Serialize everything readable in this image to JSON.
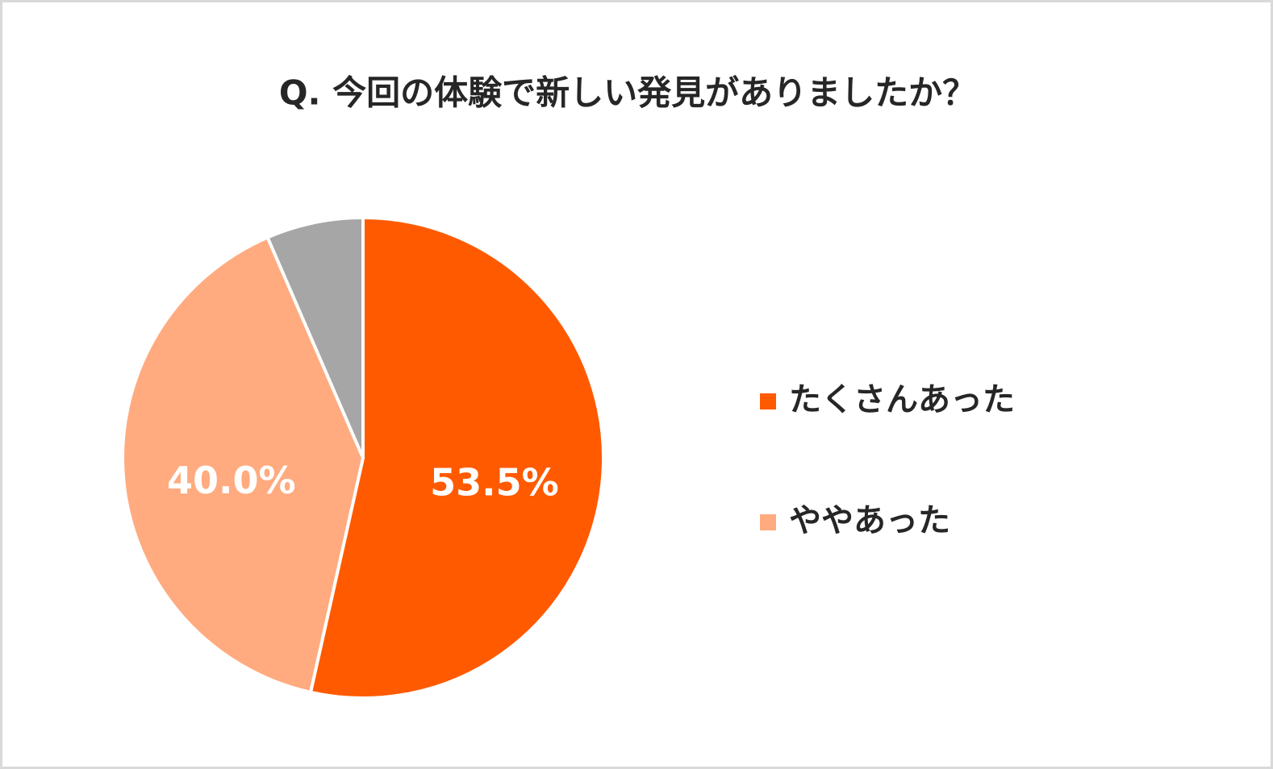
{
  "chart_data": {
    "type": "pie",
    "title": "Q. 今回の体験で新しい発見がありましたか？",
    "categories": [
      "たくさんあった",
      "ややあった",
      null
    ],
    "values": [
      53.5,
      40.0,
      6.5
    ],
    "value_labels": [
      "53.5%",
      "40.0%",
      null
    ],
    "colors": [
      "#ff5a00",
      "#ffab7f",
      "#a6a6a6"
    ],
    "legend": "right"
  }
}
